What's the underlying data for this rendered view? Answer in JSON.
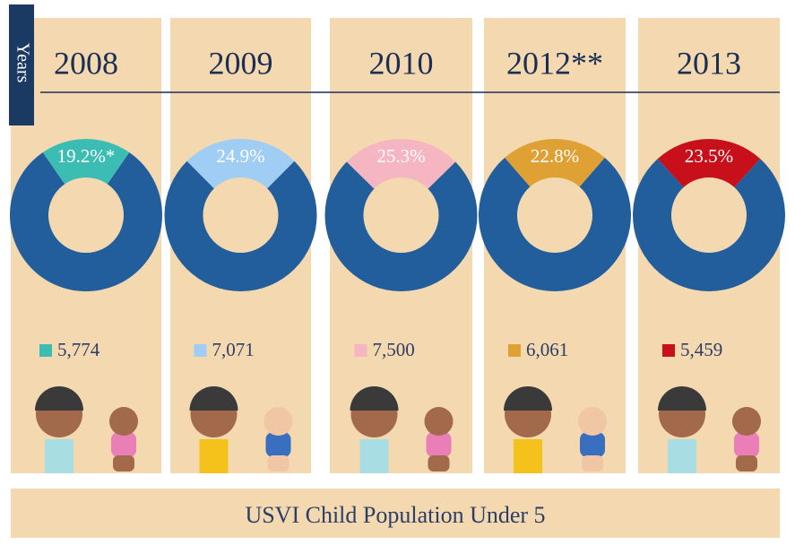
{
  "chart_data": {
    "type": "donut",
    "title": "USVI Child Population Under 5",
    "axis_label": "Years",
    "categories": [
      "2008",
      "2009",
      "2010",
      "2012**",
      "2013"
    ],
    "values": [
      19.2,
      24.9,
      25.3,
      22.8,
      23.5
    ],
    "value_labels": [
      "19.2%*",
      "24.9%",
      "25.3%",
      "22.8%",
      "23.5%"
    ],
    "colors": [
      "#3bbdb3",
      "#9fcdf3",
      "#f5b6c1",
      "#e0a134",
      "#c8101b"
    ],
    "base_color": "#235e9c",
    "counts": [
      5774,
      7071,
      7500,
      6061,
      5459
    ],
    "count_labels": [
      "5,774",
      "7,071",
      "7,500",
      "6,061",
      "5,459"
    ]
  }
}
